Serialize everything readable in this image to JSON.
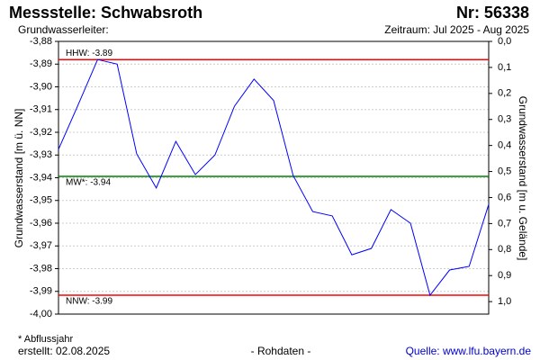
{
  "chart_data": {
    "type": "line",
    "title": "Messstelle: Schwabsroth",
    "station_number": "Nr: 56338",
    "subtitle": "Grundwasserleiter:",
    "period": "Zeitraum: Jul 2025 - Aug 2025",
    "ylabel": "Grundwasserstand [m ü. NN]",
    "y2label": "Grundwasserstand [m u. Gelände]",
    "footnote": "* Abflussjahr",
    "created": "erstellt:  02.08.2025",
    "data_note": "- Rohdaten -",
    "source": "Quelle: www.lfu.bayern.de",
    "categories": [
      null,
      null,
      null,
      null,
      null,
      null,
      null,
      null,
      null,
      null,
      null,
      null,
      null,
      null,
      null,
      null,
      null,
      null,
      null,
      null,
      null,
      null,
      null
    ],
    "values": [
      -3.9275,
      -3.908,
      -3.888,
      -3.89,
      -3.9295,
      -3.9445,
      -3.924,
      -3.9386,
      -3.93,
      -3.9085,
      -3.8966,
      -3.906,
      -3.939,
      -3.9549,
      -3.9568,
      -3.9739,
      -3.9711,
      -3.954,
      -3.96,
      -3.9917,
      -3.9806,
      -3.979,
      -3.9517
    ],
    "color": "#0000ff",
    "ylim": [
      -3.88,
      -4.0
    ],
    "yticks": [
      {
        "value": -3.88,
        "label": "-3,88"
      },
      {
        "value": -3.89,
        "label": "-3,89"
      },
      {
        "value": -3.9,
        "label": "-3,90"
      },
      {
        "value": -3.91,
        "label": "-3,91"
      },
      {
        "value": -3.92,
        "label": "-3,92"
      },
      {
        "value": -3.93,
        "label": "-3,93"
      },
      {
        "value": -3.94,
        "label": "-3,94"
      },
      {
        "value": -3.95,
        "label": "-3,95"
      },
      {
        "value": -3.96,
        "label": "-3,96"
      },
      {
        "value": -3.97,
        "label": "-3,97"
      },
      {
        "value": -3.98,
        "label": "-3,98"
      },
      {
        "value": -3.99,
        "label": "-3,99"
      },
      {
        "value": -4.0,
        "label": "-4,00"
      }
    ],
    "y2lim": [
      0,
      1.048
    ],
    "y2ticks": [
      {
        "value": 0,
        "label": "0,0"
      },
      {
        "value": 0.1,
        "label": "0,1"
      },
      {
        "value": 0.2,
        "label": "0,2"
      },
      {
        "value": 0.3,
        "label": "0,3"
      },
      {
        "value": 0.4,
        "label": "0,4"
      },
      {
        "value": 0.5,
        "label": "0,5"
      },
      {
        "value": 0.6,
        "label": "0,6"
      },
      {
        "value": 0.7,
        "label": "0,7"
      },
      {
        "value": 0.8,
        "label": "0,8"
      },
      {
        "value": 0.9,
        "label": "0,9"
      },
      {
        "value": 1,
        "label": "1,0"
      }
    ],
    "reference_lines": [
      {
        "value": -3.888,
        "label": "HHW: -3.89",
        "color": "#ff0000"
      },
      {
        "value": -3.9394,
        "label": "MW*: -3.94",
        "color": "#008000"
      },
      {
        "value": -3.9917,
        "label": "NNW: -3.99",
        "color": "#ff0000"
      }
    ],
    "grid": true
  }
}
